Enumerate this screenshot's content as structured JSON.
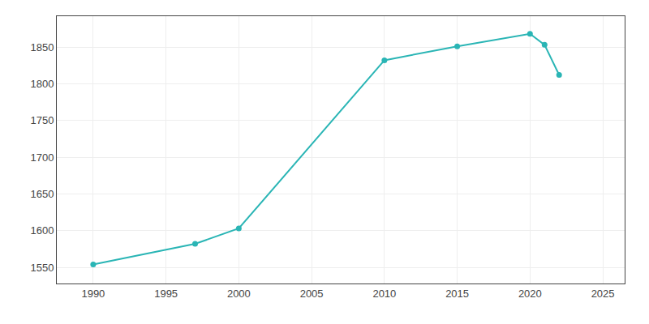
{
  "chart_data": {
    "type": "line",
    "x": [
      1990,
      1997,
      2000,
      2010,
      2015,
      2020,
      2021,
      2022
    ],
    "values": [
      1554,
      1582,
      1603,
      1832,
      1851,
      1868,
      1853,
      1812
    ],
    "color": "#2ab5b5",
    "marker": "circle",
    "xlim": [
      1987.5,
      2026.5
    ],
    "ylim": [
      1528,
      1892
    ],
    "xticks": [
      1990,
      1995,
      2000,
      2005,
      2010,
      2015,
      2020,
      2025
    ],
    "yticks": [
      1550,
      1600,
      1650,
      1700,
      1750,
      1800,
      1850
    ],
    "grid": true
  }
}
